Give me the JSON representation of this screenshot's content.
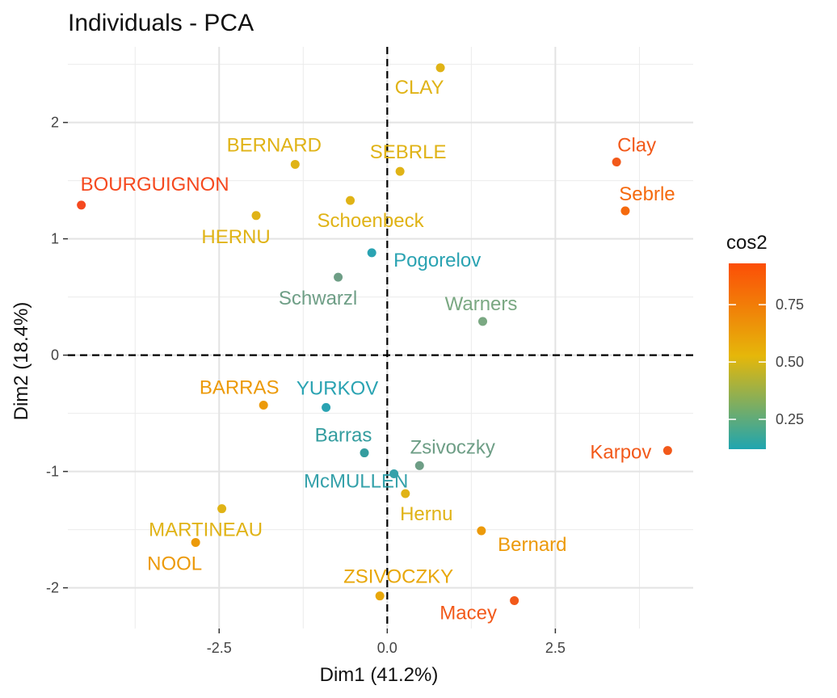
{
  "chart_data": {
    "type": "scatter",
    "title": "Individuals - PCA",
    "xlabel": "Dim1 (41.2%)",
    "ylabel": "Dim2 (18.4%)",
    "xlim": [
      -4.75,
      4.55
    ],
    "ylim": [
      -2.35,
      2.65
    ],
    "x_ticks": [
      -2.5,
      0,
      2.5
    ],
    "x_tick_labels": [
      "-2.5",
      "0.0",
      "2.5"
    ],
    "y_ticks": [
      -2,
      -1,
      0,
      1,
      2
    ],
    "y_tick_labels": [
      "-2",
      "-1",
      "0",
      "1",
      "2"
    ],
    "grid": true,
    "reference_lines": {
      "x": 0,
      "y": 0,
      "style": "dashed"
    },
    "legend": {
      "title": "cos2",
      "position": "right",
      "range": [
        0.12,
        0.93
      ],
      "ticks": [
        0.25,
        0.5,
        0.75
      ],
      "tick_labels": [
        "0.25",
        "0.50",
        "0.75"
      ],
      "gradient_colors": [
        "#1FA5B0",
        "#E5B70A",
        "#FC4E07"
      ]
    },
    "points": [
      {
        "label": "SEBRLE",
        "x": 0.19,
        "y": 1.58,
        "cos2": 0.48,
        "color": "#E0B316"
      },
      {
        "label": "CLAY",
        "x": 0.79,
        "y": 2.47,
        "cos2": 0.52,
        "color": "#E0B316"
      },
      {
        "label": "BERNARD",
        "x": -1.37,
        "y": 1.64,
        "cos2": 0.5,
        "color": "#E0B316"
      },
      {
        "label": "YURKOV",
        "x": -0.91,
        "y": -0.45,
        "cos2": 0.12,
        "color": "#2AA3B2"
      },
      {
        "label": "ZSIVOCZKY",
        "x": -0.11,
        "y": -2.07,
        "cos2": 0.6,
        "color": "#E8A70A"
      },
      {
        "label": "McMULLEN",
        "x": 0.1,
        "y": -1.02,
        "cos2": 0.13,
        "color": "#34A1AA"
      },
      {
        "label": "MARTINEAU",
        "x": -2.46,
        "y": -1.32,
        "cos2": 0.52,
        "color": "#E0B316"
      },
      {
        "label": "HERNU",
        "x": -1.95,
        "y": 1.2,
        "cos2": 0.5,
        "color": "#E0B316"
      },
      {
        "label": "BARRAS",
        "x": -1.84,
        "y": -0.43,
        "cos2": 0.65,
        "color": "#EC9A0A"
      },
      {
        "label": "NOOL",
        "x": -2.85,
        "y": -1.61,
        "cos2": 0.68,
        "color": "#EC9A0A"
      },
      {
        "label": "BOURGUIGNON",
        "x": -4.55,
        "y": 1.29,
        "cos2": 0.93,
        "color": "#F5491F"
      },
      {
        "label": "Sebrle",
        "x": 3.54,
        "y": 1.24,
        "cos2": 0.85,
        "color": "#F56A0E"
      },
      {
        "label": "Clay",
        "x": 3.41,
        "y": 1.66,
        "cos2": 0.88,
        "color": "#F2591A"
      },
      {
        "label": "Karpov",
        "x": 4.17,
        "y": -0.82,
        "cos2": 0.87,
        "color": "#F2591A"
      },
      {
        "label": "Macey",
        "x": 1.89,
        "y": -2.11,
        "cos2": 0.86,
        "color": "#F2591A"
      },
      {
        "label": "Warners",
        "x": 1.42,
        "y": 0.29,
        "cos2": 0.3,
        "color": "#7AA882"
      },
      {
        "label": "Zsivoczky",
        "x": 0.48,
        "y": -0.95,
        "cos2": 0.27,
        "color": "#6E9E86"
      },
      {
        "label": "Hernu",
        "x": 0.27,
        "y": -1.19,
        "cos2": 0.5,
        "color": "#E0B316"
      },
      {
        "label": "Bernard",
        "x": 1.4,
        "y": -1.51,
        "cos2": 0.7,
        "color": "#EC9A0A"
      },
      {
        "label": "Schwarzl",
        "x": -0.73,
        "y": 0.67,
        "cos2": 0.26,
        "color": "#6E9E86"
      },
      {
        "label": "Pogorelov",
        "x": -0.23,
        "y": 0.88,
        "cos2": 0.13,
        "color": "#2AA3B2"
      },
      {
        "label": "Schoenbeck",
        "x": -0.55,
        "y": 1.33,
        "cos2": 0.5,
        "color": "#E0B316"
      },
      {
        "label": "Barras",
        "x": -0.34,
        "y": -0.84,
        "cos2": 0.14,
        "color": "#349D9F"
      }
    ]
  }
}
